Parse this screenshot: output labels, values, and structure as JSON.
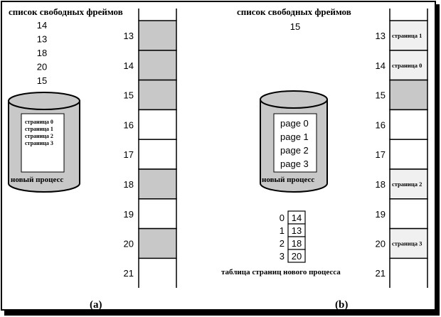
{
  "panel_a": {
    "free_list_title": "список свободных фреймов",
    "free_list": [
      "14",
      "13",
      "18",
      "20",
      "15"
    ],
    "disk_pages": [
      "страница 0",
      "страница 1",
      "страница 2",
      "страница 3"
    ],
    "disk_label": "новый процесс",
    "frames": [
      {
        "num": "13",
        "state": "free",
        "label": ""
      },
      {
        "num": "14",
        "state": "free",
        "label": ""
      },
      {
        "num": "15",
        "state": "free",
        "label": ""
      },
      {
        "num": "16",
        "state": "used",
        "label": ""
      },
      {
        "num": "17",
        "state": "used",
        "label": ""
      },
      {
        "num": "18",
        "state": "free",
        "label": ""
      },
      {
        "num": "19",
        "state": "used",
        "label": ""
      },
      {
        "num": "20",
        "state": "free",
        "label": ""
      },
      {
        "num": "21",
        "state": "used",
        "label": ""
      }
    ],
    "caption": "(a)"
  },
  "panel_b": {
    "free_list_title": "список свободных фреймов",
    "free_list": [
      "15"
    ],
    "disk_pages": [
      "page 0",
      "page 1",
      "page 2",
      "page 3"
    ],
    "disk_label": "новый процесс",
    "page_table": [
      {
        "page": "0",
        "frame": "14"
      },
      {
        "page": "1",
        "frame": "13"
      },
      {
        "page": "2",
        "frame": "18"
      },
      {
        "page": "3",
        "frame": "20"
      }
    ],
    "page_table_caption": "таблица страниц нового процесса",
    "frames": [
      {
        "num": "13",
        "state": "loaded",
        "label": "страница 1"
      },
      {
        "num": "14",
        "state": "loaded",
        "label": "страница 0"
      },
      {
        "num": "15",
        "state": "free",
        "label": ""
      },
      {
        "num": "16",
        "state": "used",
        "label": ""
      },
      {
        "num": "17",
        "state": "used",
        "label": ""
      },
      {
        "num": "18",
        "state": "loaded",
        "label": "страница 2"
      },
      {
        "num": "19",
        "state": "used",
        "label": ""
      },
      {
        "num": "20",
        "state": "loaded",
        "label": "страница 3"
      },
      {
        "num": "21",
        "state": "used",
        "label": ""
      }
    ],
    "caption": "(b)"
  },
  "colors": {
    "free_frame": "#c8c8c8",
    "used_frame": "#ffffff",
    "loaded_frame": "#f0f0f0",
    "disk_fill": "#c8c8c8",
    "line": "#000000"
  }
}
